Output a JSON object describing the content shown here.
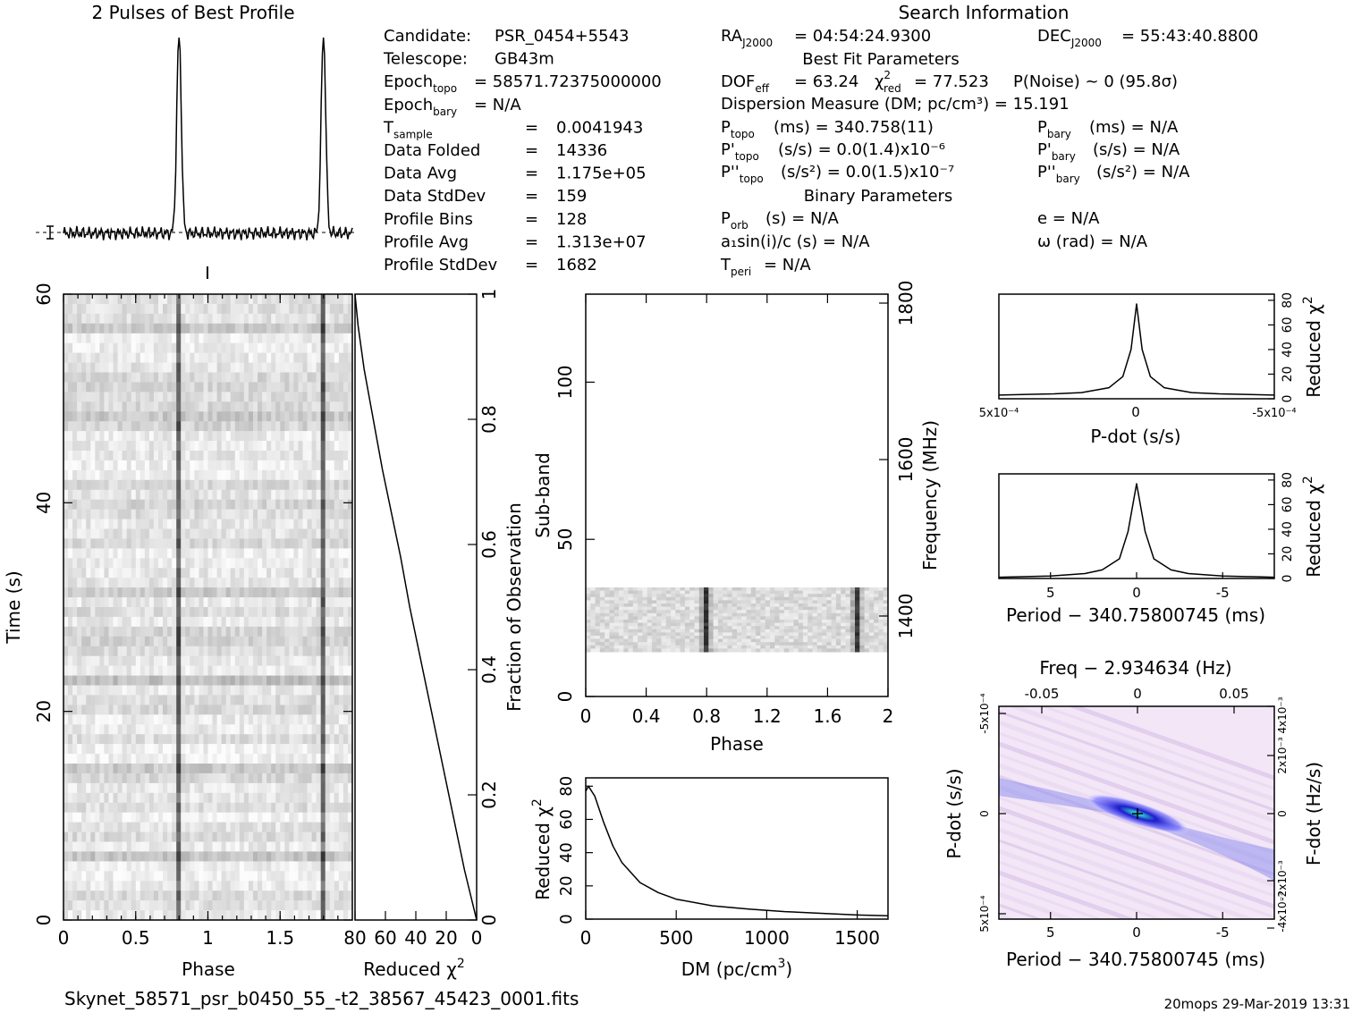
{
  "header": {
    "profile_title": "2 Pulses of Best Profile",
    "search_title": "Search Information"
  },
  "info_col1": [
    {
      "label": "Candidate:",
      "value": "PSR_0454+5543"
    },
    {
      "label": "Telescope:",
      "value": "GB43m"
    },
    {
      "label": "Epoch_topo",
      "value": "= 58571.72375000000"
    },
    {
      "label": "Epoch_bary",
      "value": "= N/A"
    },
    {
      "label": "T_sample",
      "value": "0.0041943"
    },
    {
      "label": "Data Folded",
      "value": "14336"
    },
    {
      "label": "Data Avg",
      "value": "1.175e+05"
    },
    {
      "label": "Data StdDev",
      "value": "159"
    },
    {
      "label": "Profile Bins",
      "value": "128"
    },
    {
      "label": "Profile Avg",
      "value": "1.313e+07"
    },
    {
      "label": "Profile StdDev",
      "value": "1682"
    }
  ],
  "info_col2": {
    "ra": "= 04:54:24.9300",
    "best_fit_heading": "Best Fit Parameters",
    "dof": "= 63.24",
    "chi2": "= 77.523",
    "pnoise": "P(Noise) ~ 0    (95.8σ)",
    "dm": "Dispersion Measure (DM; pc/cm³) = 15.191",
    "ptopo": "(ms) =  340.758(11)",
    "pdtopo": "(s/s) = 0.0(1.4)x10⁻⁶",
    "pddtopo": "(s/s²) = 0.0(1.5)x10⁻⁷",
    "binary_heading": "Binary Parameters",
    "porb": "(s) = N/A",
    "a1sini": "a₁sin(i)/c (s) = N/A",
    "tperi": "= N/A"
  },
  "info_col3": {
    "dec": "= 55:43:40.8800",
    "pbary": "(ms) = N/A",
    "pdbary": "(s/s) = N/A",
    "pddbary": "(s/s²) = N/A",
    "ecc": "e = N/A",
    "omega": "ω (rad) = N/A"
  },
  "chart_data": [
    {
      "type": "line",
      "name_id": "profile",
      "x": [
        0,
        0.2,
        0.4,
        0.6,
        0.72,
        0.76,
        0.78,
        0.8,
        0.82,
        0.85,
        0.9,
        1.0,
        1.2,
        1.4,
        1.6,
        1.72,
        1.76,
        1.78,
        1.8,
        1.82,
        1.85,
        1.9,
        2.0
      ],
      "y": [
        0.05,
        0.06,
        0.05,
        0.07,
        0.06,
        0.3,
        0.9,
        1.0,
        0.55,
        0.08,
        0.05,
        0.06,
        0.05,
        0.06,
        0.07,
        0.06,
        0.3,
        0.9,
        1.0,
        0.55,
        0.08,
        0.05,
        0.06
      ]
    },
    {
      "type": "heatmap",
      "name_id": "time-phase",
      "xlabel": "Phase",
      "ylabel": "Time (s)",
      "xlim": [
        0,
        2
      ],
      "ylim": [
        0,
        60
      ],
      "x_ticks": [
        "0",
        "0.5",
        "1",
        "1.5"
      ],
      "y_ticks": [
        "0",
        "20",
        "40",
        "60"
      ],
      "pulse_phases": [
        0.78,
        1.78
      ]
    },
    {
      "type": "line",
      "name_id": "chi2-vs-fraction",
      "xlabel": "Reduced χ²",
      "ylabel": "Fraction of Observation",
      "x_ticks": [
        "80",
        "60",
        "40",
        "20",
        "0"
      ],
      "y_ticks": [
        "0",
        "0.2",
        "0.4",
        "0.6",
        "0.8",
        "1"
      ],
      "x": [
        80,
        78,
        74,
        68,
        62,
        56,
        50,
        44,
        38,
        32,
        26,
        20,
        14,
        8,
        4,
        0
      ],
      "y": [
        1.0,
        0.95,
        0.88,
        0.8,
        0.72,
        0.65,
        0.58,
        0.5,
        0.43,
        0.36,
        0.29,
        0.22,
        0.15,
        0.08,
        0.04,
        0.0
      ]
    },
    {
      "type": "heatmap",
      "name_id": "subband-phase",
      "xlabel": "Phase",
      "ylabel": "Sub-band",
      "ylabel_right": "Frequency (MHz)",
      "x_ticks": [
        "0",
        "0.4",
        "0.8",
        "1.2",
        "1.6",
        "2"
      ],
      "y_ticks": [
        "0",
        "50",
        "100"
      ],
      "freq_ticks": [
        "1400",
        "1600",
        "1800"
      ],
      "band_range": [
        15,
        35
      ],
      "pulse_phases": [
        0.78,
        1.78
      ]
    },
    {
      "type": "line",
      "name_id": "dm-chi2",
      "xlabel": "DM (pc/cm³)",
      "ylabel": "Reduced χ²",
      "x_ticks": [
        "0",
        "500",
        "1000",
        "1500"
      ],
      "y_ticks": [
        "0",
        "20",
        "40",
        "60",
        "80"
      ],
      "x": [
        0,
        15,
        50,
        100,
        150,
        200,
        300,
        400,
        500,
        700,
        900,
        1100,
        1300,
        1500,
        1670
      ],
      "y": [
        77,
        80,
        74,
        58,
        44,
        34,
        22,
        16,
        12,
        8,
        6,
        4.5,
        3.5,
        2.5,
        2
      ]
    },
    {
      "type": "line",
      "name_id": "pdot-chi2",
      "xlabel": "P-dot (s/s)",
      "ylabel": "Reduced χ²",
      "x_ticks": [
        "5x10⁻⁴",
        "0",
        "-5x10⁻⁴"
      ],
      "y_ticks": [
        "0",
        "20",
        "40",
        "60",
        "80"
      ],
      "x": [
        5,
        3,
        2,
        1,
        0.5,
        0.2,
        0,
        -0.2,
        -0.5,
        -1,
        -2,
        -3,
        -5
      ],
      "y": [
        3,
        4,
        5,
        9,
        18,
        40,
        77,
        40,
        18,
        9,
        5,
        4,
        3
      ]
    },
    {
      "type": "line",
      "name_id": "period-chi2",
      "xlabel": "Period − 340.75800745 (ms)",
      "ylabel": "Reduced χ²",
      "x_ticks": [
        "5",
        "0",
        "-5"
      ],
      "y_ticks": [
        "0",
        "20",
        "40",
        "60",
        "80"
      ],
      "x": [
        8,
        5,
        3,
        2,
        1,
        0.5,
        0,
        -0.5,
        -1,
        -2,
        -3,
        -5,
        -8
      ],
      "y": [
        1,
        2,
        4,
        7,
        16,
        38,
        77,
        38,
        16,
        7,
        4,
        2,
        1
      ]
    },
    {
      "type": "heatmap",
      "name_id": "period-pdot",
      "title": "Freq − 2.934634 (Hz)",
      "xlabel": "Period − 340.75800745 (ms)",
      "ylabel": "P-dot (s/s)",
      "ylabel_right": "F-dot (Hz/s)",
      "x_ticks": [
        "5",
        "0",
        "-5"
      ],
      "top_ticks": [
        "-0.05",
        "0",
        "0.05"
      ],
      "y_ticks": [
        "5x10⁻⁴",
        "0",
        "-5x10⁻⁴"
      ],
      "right_ticks": [
        "-4x10⁻³",
        "-2x10⁻³",
        "0",
        "2x10⁻³",
        "4x10⁻³"
      ]
    }
  ],
  "footer": {
    "filename": "Skynet_58571_psr_b0450_55_-t2_38567_45423_0001.fits",
    "timestamp": "20mops 29-Mar-2019 13:31"
  },
  "colors": {
    "ink": "#000000",
    "heat_blue": "#1c1ccc",
    "heat_green": "#33ffcc",
    "heat_bg": "#f3e6f6"
  }
}
